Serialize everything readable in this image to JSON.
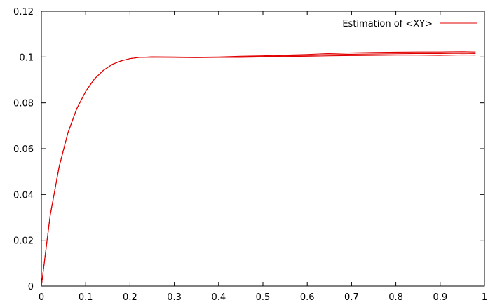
{
  "chart_data": {
    "type": "line",
    "title": "",
    "xlabel": "",
    "ylabel": "",
    "xlim": [
      0,
      1
    ],
    "ylim": [
      0,
      0.12
    ],
    "xticks": [
      "0",
      "0.1",
      "0.2",
      "0.3",
      "0.4",
      "0.5",
      "0.6",
      "0.7",
      "0.8",
      "0.9",
      "1"
    ],
    "yticks": [
      "0",
      "0.02",
      "0.04",
      "0.06",
      "0.08",
      "0.1",
      "0.12"
    ],
    "grid": false,
    "legend_position": "top-right",
    "color": "#e00000",
    "series": [
      {
        "name": "Estimation of <XY>",
        "x": [
          0,
          0.02,
          0.04,
          0.06,
          0.08,
          0.1,
          0.12,
          0.14,
          0.16,
          0.18,
          0.2,
          0.22,
          0.25,
          0.3,
          0.35,
          0.4,
          0.45,
          0.5,
          0.55,
          0.6,
          0.65,
          0.7,
          0.75,
          0.8,
          0.85,
          0.9,
          0.95,
          0.98
        ],
        "y": [
          0,
          0.031,
          0.052,
          0.067,
          0.0775,
          0.085,
          0.0905,
          0.0942,
          0.0968,
          0.0983,
          0.0993,
          0.0998,
          0.1001,
          0.1,
          0.0999,
          0.1,
          0.1003,
          0.1005,
          0.1008,
          0.1011,
          0.1015,
          0.1018,
          0.102,
          0.1021,
          0.1022,
          0.1022,
          0.1023,
          0.1022
        ]
      },
      {
        "name": "",
        "x": [
          0,
          0.02,
          0.04,
          0.06,
          0.08,
          0.1,
          0.12,
          0.14,
          0.16,
          0.18,
          0.2,
          0.22,
          0.25,
          0.3,
          0.35,
          0.4,
          0.45,
          0.5,
          0.55,
          0.6,
          0.65,
          0.7,
          0.75,
          0.8,
          0.85,
          0.9,
          0.95,
          0.98
        ],
        "y": [
          0,
          0.031,
          0.052,
          0.067,
          0.0775,
          0.085,
          0.0905,
          0.0942,
          0.0968,
          0.0983,
          0.0993,
          0.0998,
          0.1,
          0.0999,
          0.0998,
          0.0999,
          0.1,
          0.1002,
          0.1005,
          0.1007,
          0.101,
          0.1012,
          0.1013,
          0.1014,
          0.1015,
          0.1015,
          0.1016,
          0.1015
        ]
      },
      {
        "name": "",
        "x": [
          0,
          0.02,
          0.04,
          0.06,
          0.08,
          0.1,
          0.12,
          0.14,
          0.16,
          0.18,
          0.2,
          0.22,
          0.25,
          0.3,
          0.35,
          0.4,
          0.45,
          0.5,
          0.55,
          0.6,
          0.65,
          0.7,
          0.75,
          0.8,
          0.85,
          0.9,
          0.95,
          0.98
        ],
        "y": [
          0,
          0.031,
          0.052,
          0.067,
          0.0775,
          0.085,
          0.0905,
          0.0942,
          0.0968,
          0.0983,
          0.0993,
          0.0998,
          0.0999,
          0.0998,
          0.0997,
          0.0998,
          0.0998,
          0.1,
          0.1002,
          0.1003,
          0.1005,
          0.1006,
          0.1007,
          0.1008,
          0.1008,
          0.1007,
          0.1009,
          0.1008
        ]
      }
    ]
  }
}
